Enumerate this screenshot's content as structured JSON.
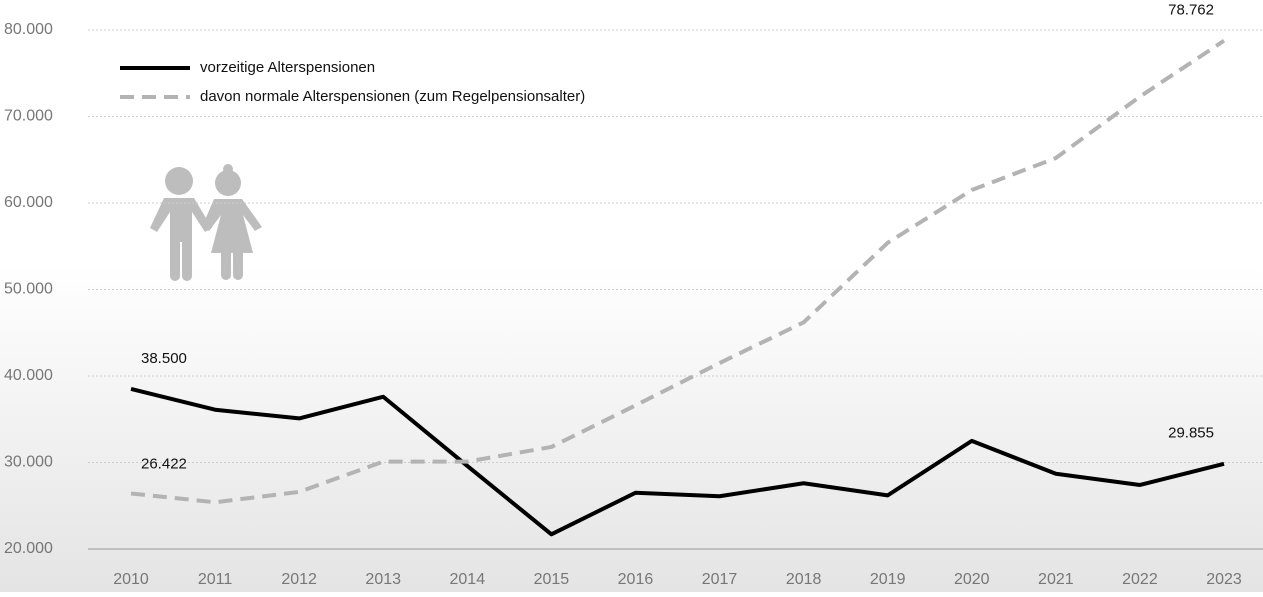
{
  "chart_data": {
    "type": "line",
    "x": [
      2010,
      2011,
      2012,
      2013,
      2014,
      2015,
      2016,
      2017,
      2018,
      2019,
      2020,
      2021,
      2022,
      2023
    ],
    "series": [
      {
        "name": "vorzeitige Alterspensionen",
        "color": "#000000",
        "dash": false,
        "values": [
          38500,
          36100,
          35100,
          37600,
          29600,
          21700,
          26500,
          26100,
          27600,
          26200,
          32500,
          28700,
          27400,
          29855
        ],
        "value_labels": [
          "38.500",
          null,
          null,
          null,
          null,
          null,
          null,
          null,
          null,
          null,
          null,
          null,
          null,
          "29.855"
        ]
      },
      {
        "name": "davon normale Alterspensionen (zum Regelpensionsalter)",
        "color": "#b3b3b3",
        "dash": true,
        "values": [
          26422,
          25400,
          26600,
          30100,
          30100,
          31800,
          36600,
          41500,
          46200,
          55400,
          61500,
          65200,
          72300,
          78762
        ],
        "value_labels": [
          "26.422",
          null,
          null,
          null,
          null,
          null,
          null,
          null,
          null,
          null,
          null,
          null,
          null,
          "78.762"
        ]
      }
    ],
    "xlim": [
      2010,
      2023
    ],
    "ylim": [
      20000,
      80000
    ],
    "yticks": [
      {
        "value": 20000,
        "label": "20.000"
      },
      {
        "value": 30000,
        "label": "30.000"
      },
      {
        "value": 40000,
        "label": "40.000"
      },
      {
        "value": 50000,
        "label": "50.000"
      },
      {
        "value": 60000,
        "label": "60.000"
      },
      {
        "value": 70000,
        "label": "70.000"
      },
      {
        "value": 80000,
        "label": "80.000"
      }
    ],
    "grid": true
  }
}
